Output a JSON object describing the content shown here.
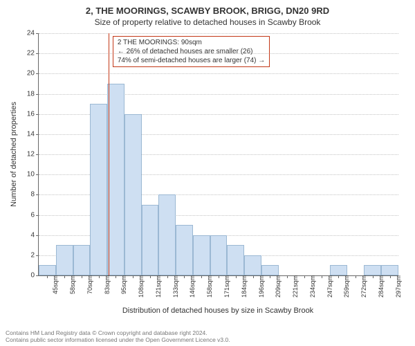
{
  "title_line1": "2, THE MOORINGS, SCAWBY BROOK, BRIGG, DN20 9RD",
  "title_line2": "Size of property relative to detached houses in Scawby Brook",
  "ylabel": "Number of detached properties",
  "xlabel": "Distribution of detached houses by size in Scawby Brook",
  "footer_line1": "Contains HM Land Registry data © Crown copyright and database right 2024.",
  "footer_line2": "Contains public sector information licensed under the Open Government Licence v3.0.",
  "chart": {
    "type": "histogram",
    "ylim": [
      0,
      24
    ],
    "ytick_step": 2,
    "bar_fill": "#cedff2",
    "bar_stroke": "#9bb8d3",
    "background": "#ffffff",
    "grid_color": "#888888",
    "marker_color": "#c23616",
    "marker_x": 90,
    "xticks": [
      "45sqm",
      "58sqm",
      "70sqm",
      "83sqm",
      "95sqm",
      "108sqm",
      "121sqm",
      "133sqm",
      "146sqm",
      "158sqm",
      "171sqm",
      "184sqm",
      "196sqm",
      "209sqm",
      "221sqm",
      "234sqm",
      "247sqm",
      "259sqm",
      "272sqm",
      "284sqm",
      "297sqm"
    ],
    "values": [
      1,
      3,
      3,
      17,
      19,
      16,
      7,
      8,
      5,
      4,
      4,
      3,
      2,
      1,
      0,
      0,
      0,
      1,
      0,
      1,
      1
    ],
    "callout": {
      "border_color": "#c23616",
      "line1": "2 THE MOORINGS: 90sqm",
      "line2": "← 26% of detached houses are smaller (26)",
      "line3": "74% of semi-detached houses are larger (74) →"
    }
  }
}
